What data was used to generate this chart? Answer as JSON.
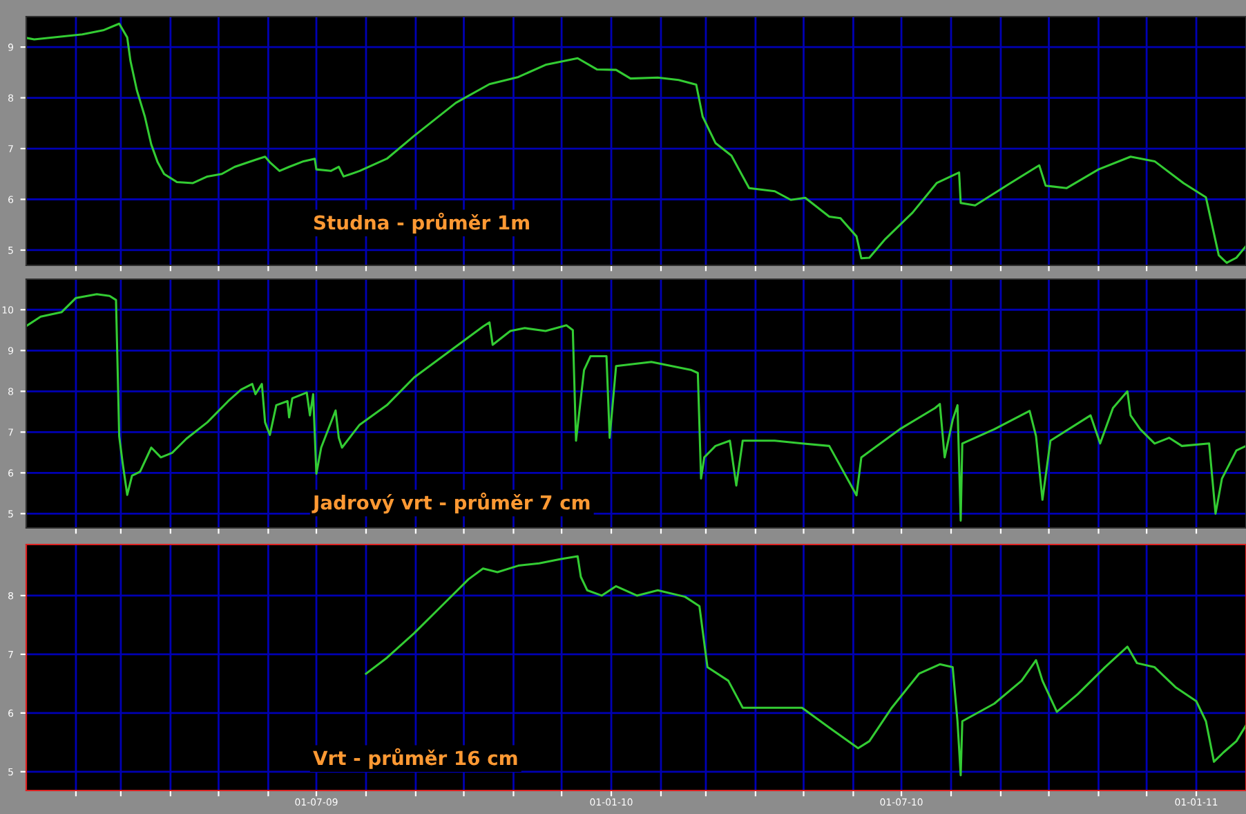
{
  "chart_data": [
    {
      "type": "line",
      "annotations": [
        "Studna - průměr 1m"
      ],
      "xlim": [
        "2009-01-01",
        "2011-02-01"
      ],
      "ylim": [
        4.7,
        9.6
      ],
      "yticks": [
        5,
        6,
        7,
        8,
        9
      ],
      "grid": true,
      "tick_labels": "y",
      "xticks": [
        {
          "value": "2009-02-01",
          "label": null
        },
        {
          "value": "2009-03-01",
          "label": null
        },
        {
          "value": "2009-04-01",
          "label": null
        },
        {
          "value": "2009-05-01",
          "label": null
        },
        {
          "value": "2009-06-01",
          "label": null
        },
        {
          "value": "2009-07-01",
          "label": null
        },
        {
          "value": "2009-08-01",
          "label": null
        },
        {
          "value": "2009-09-01",
          "label": null
        },
        {
          "value": "2009-10-01",
          "label": null
        },
        {
          "value": "2009-11-01",
          "label": null
        },
        {
          "value": "2009-12-01",
          "label": null
        },
        {
          "value": "2010-01-01",
          "label": null
        },
        {
          "value": "2010-02-01",
          "label": null
        },
        {
          "value": "2010-03-01",
          "label": null
        },
        {
          "value": "2010-04-01",
          "label": null
        },
        {
          "value": "2010-05-01",
          "label": null
        },
        {
          "value": "2010-06-01",
          "label": null
        },
        {
          "value": "2010-07-01",
          "label": null
        },
        {
          "value": "2010-08-01",
          "label": null
        },
        {
          "value": "2010-09-01",
          "label": null
        },
        {
          "value": "2010-10-01",
          "label": null
        },
        {
          "value": "2010-11-01",
          "label": null
        },
        {
          "value": "2010-12-01",
          "label": null
        },
        {
          "value": "2011-01-01",
          "label": null
        }
      ],
      "series": [
        {
          "color": "#33cc33",
          "x": [
            "2009-01-01",
            "2009-01-06",
            "2009-02-05",
            "2009-02-18",
            "2009-02-28",
            "2009-03-05",
            "2009-03-07",
            "2009-03-11",
            "2009-03-16",
            "2009-03-20",
            "2009-03-24",
            "2009-03-28",
            "2009-04-05",
            "2009-04-15",
            "2009-04-24",
            "2009-05-03",
            "2009-05-11",
            "2009-05-24",
            "2009-05-30",
            "2009-06-02",
            "2009-06-08",
            "2009-06-14",
            "2009-06-23",
            "2009-06-30",
            "2009-07-01",
            "2009-07-10",
            "2009-07-15",
            "2009-07-18",
            "2009-07-28",
            "2009-08-14",
            "2009-08-31",
            "2009-09-26",
            "2009-10-17",
            "2009-11-04",
            "2009-11-21",
            "2009-12-11",
            "2009-12-23",
            "2010-01-04",
            "2010-01-13",
            "2010-01-30",
            "2010-02-12",
            "2010-02-23",
            "2010-02-27",
            "2010-03-07",
            "2010-03-17",
            "2010-03-28",
            "2010-04-13",
            "2010-04-23",
            "2010-05-02",
            "2010-05-17",
            "2010-05-24",
            "2010-06-03",
            "2010-06-06",
            "2010-06-11",
            "2010-06-21",
            "2010-07-08",
            "2010-07-23",
            "2010-08-06",
            "2010-08-07",
            "2010-08-16",
            "2010-09-06",
            "2010-09-25",
            "2010-09-29",
            "2010-10-12",
            "2010-11-01",
            "2010-11-21",
            "2010-12-06",
            "2010-12-24",
            "2011-01-07",
            "2011-01-15",
            "2011-01-20",
            "2011-01-26",
            "2011-02-01"
          ],
          "values": [
            9.18,
            9.15,
            9.25,
            9.33,
            9.46,
            9.19,
            8.73,
            8.15,
            7.63,
            7.08,
            6.73,
            6.5,
            6.34,
            6.32,
            6.45,
            6.5,
            6.64,
            6.78,
            6.84,
            6.73,
            6.56,
            6.64,
            6.75,
            6.8,
            6.59,
            6.56,
            6.64,
            6.45,
            6.56,
            6.8,
            7.25,
            7.9,
            8.27,
            8.41,
            8.65,
            8.78,
            8.56,
            8.55,
            8.38,
            8.4,
            8.35,
            8.26,
            7.63,
            7.11,
            6.86,
            6.22,
            6.16,
            5.99,
            6.03,
            5.66,
            5.63,
            5.27,
            4.84,
            4.85,
            5.22,
            5.74,
            6.32,
            6.53,
            5.93,
            5.88,
            6.3,
            6.67,
            6.27,
            6.22,
            6.59,
            6.84,
            6.75,
            6.32,
            6.04,
            4.9,
            4.75,
            4.85,
            5.08
          ]
        }
      ]
    },
    {
      "type": "line",
      "annotations": [
        "Jadrový vrt - průměr 7 cm"
      ],
      "xlim": [
        "2009-01-01",
        "2011-02-01"
      ],
      "ylim": [
        4.65,
        10.75
      ],
      "yticks": [
        5,
        6,
        7,
        8,
        9,
        10
      ],
      "grid": true,
      "tick_labels": "y",
      "xticks": [
        {
          "value": "2009-02-01",
          "label": null
        },
        {
          "value": "2009-03-01",
          "label": null
        },
        {
          "value": "2009-04-01",
          "label": null
        },
        {
          "value": "2009-05-01",
          "label": null
        },
        {
          "value": "2009-06-01",
          "label": null
        },
        {
          "value": "2009-07-01",
          "label": null
        },
        {
          "value": "2009-08-01",
          "label": null
        },
        {
          "value": "2009-09-01",
          "label": null
        },
        {
          "value": "2009-10-01",
          "label": null
        },
        {
          "value": "2009-11-01",
          "label": null
        },
        {
          "value": "2009-12-01",
          "label": null
        },
        {
          "value": "2010-01-01",
          "label": null
        },
        {
          "value": "2010-02-01",
          "label": null
        },
        {
          "value": "2010-03-01",
          "label": null
        },
        {
          "value": "2010-04-01",
          "label": null
        },
        {
          "value": "2010-05-01",
          "label": null
        },
        {
          "value": "2010-06-01",
          "label": null
        },
        {
          "value": "2010-07-01",
          "label": null
        },
        {
          "value": "2010-08-01",
          "label": null
        },
        {
          "value": "2010-09-01",
          "label": null
        },
        {
          "value": "2010-10-01",
          "label": null
        },
        {
          "value": "2010-11-01",
          "label": null
        },
        {
          "value": "2010-12-01",
          "label": null
        },
        {
          "value": "2011-01-01",
          "label": null
        }
      ],
      "series": [
        {
          "color": "#33cc33",
          "x": [
            "2009-01-01",
            "2009-01-10",
            "2009-01-23",
            "2009-02-01",
            "2009-02-14",
            "2009-02-22",
            "2009-02-26",
            "2009-02-28",
            "2009-03-02",
            "2009-03-05",
            "2009-03-08",
            "2009-03-13",
            "2009-03-20",
            "2009-03-26",
            "2009-04-02",
            "2009-04-11",
            "2009-04-24",
            "2009-05-07",
            "2009-05-15",
            "2009-05-22",
            "2009-05-24",
            "2009-05-28",
            "2009-05-30",
            "2009-06-02",
            "2009-06-06",
            "2009-06-13",
            "2009-06-14",
            "2009-06-16",
            "2009-06-25",
            "2009-06-27",
            "2009-06-29",
            "2009-07-01",
            "2009-07-04",
            "2009-07-13",
            "2009-07-15",
            "2009-07-17",
            "2009-07-28",
            "2009-08-14",
            "2009-08-31",
            "2009-10-13",
            "2009-10-17",
            "2009-10-19",
            "2009-10-30",
            "2009-11-08",
            "2009-11-21",
            "2009-12-04",
            "2009-12-08",
            "2009-12-10",
            "2009-12-15",
            "2009-12-19",
            "2009-12-29",
            "2009-12-31",
            "2010-01-04",
            "2010-01-26",
            "2010-02-20",
            "2010-02-24",
            "2010-02-26",
            "2010-02-28",
            "2010-03-07",
            "2010-03-16",
            "2010-03-20",
            "2010-03-24",
            "2010-04-13",
            "2010-04-30",
            "2010-05-17",
            "2010-06-03",
            "2010-06-06",
            "2010-06-30",
            "2010-07-22",
            "2010-07-25",
            "2010-07-28",
            "2010-08-02",
            "2010-08-05",
            "2010-08-07",
            "2010-08-08",
            "2010-08-28",
            "2010-09-19",
            "2010-09-23",
            "2010-09-27",
            "2010-10-02",
            "2010-10-27",
            "2010-11-02",
            "2010-11-10",
            "2010-11-19",
            "2010-11-21",
            "2010-11-27",
            "2010-12-06",
            "2010-12-15",
            "2010-12-23",
            "2011-01-09",
            "2011-01-13",
            "2011-01-17",
            "2011-01-26",
            "2011-02-01"
          ],
          "values": [
            9.6,
            9.83,
            9.94,
            10.29,
            10.38,
            10.34,
            10.24,
            6.9,
            6.28,
            5.46,
            5.93,
            6.03,
            6.62,
            6.38,
            6.49,
            6.84,
            7.24,
            7.76,
            8.04,
            8.18,
            7.93,
            8.18,
            7.24,
            6.93,
            7.66,
            7.76,
            7.36,
            7.83,
            7.97,
            7.41,
            7.93,
            5.98,
            6.62,
            7.53,
            6.86,
            6.62,
            7.18,
            7.66,
            8.34,
            9.59,
            9.69,
            9.14,
            9.48,
            9.55,
            9.48,
            9.62,
            9.5,
            6.79,
            8.52,
            8.86,
            8.86,
            6.86,
            8.62,
            8.72,
            8.52,
            8.45,
            5.86,
            6.38,
            6.66,
            6.79,
            5.69,
            6.79,
            6.79,
            6.72,
            6.66,
            5.45,
            6.38,
            7.07,
            7.59,
            7.69,
            6.38,
            7.3,
            7.66,
            4.83,
            6.72,
            7.07,
            7.52,
            6.9,
            5.34,
            6.79,
            7.41,
            6.72,
            7.59,
            8.0,
            7.41,
            7.07,
            6.72,
            6.86,
            6.66,
            6.72,
            5.0,
            5.86,
            6.55,
            6.66
          ]
        }
      ]
    },
    {
      "type": "line",
      "annotations": [
        "Vrt - průměr 16 cm"
      ],
      "xlim": [
        "2009-01-01",
        "2011-02-01"
      ],
      "ylim": [
        4.68,
        8.87
      ],
      "yticks": [
        5,
        6,
        7,
        8
      ],
      "grid": true,
      "xticks": [
        {
          "value": "2009-02-01",
          "label": null
        },
        {
          "value": "2009-03-01",
          "label": null
        },
        {
          "value": "2009-04-01",
          "label": null
        },
        {
          "value": "2009-05-01",
          "label": null
        },
        {
          "value": "2009-06-01",
          "label": null
        },
        {
          "value": "2009-07-01",
          "label": "01-07-09"
        },
        {
          "value": "2009-08-01",
          "label": null
        },
        {
          "value": "2009-09-01",
          "label": null
        },
        {
          "value": "2009-10-01",
          "label": null
        },
        {
          "value": "2009-11-01",
          "label": null
        },
        {
          "value": "2009-12-01",
          "label": null
        },
        {
          "value": "2010-01-01",
          "label": "01-01-10"
        },
        {
          "value": "2010-02-01",
          "label": null
        },
        {
          "value": "2010-03-01",
          "label": null
        },
        {
          "value": "2010-04-01",
          "label": null
        },
        {
          "value": "2010-05-01",
          "label": null
        },
        {
          "value": "2010-06-01",
          "label": null
        },
        {
          "value": "2010-07-01",
          "label": "01-07-10"
        },
        {
          "value": "2010-08-01",
          "label": null
        },
        {
          "value": "2010-09-01",
          "label": null
        },
        {
          "value": "2010-10-01",
          "label": null
        },
        {
          "value": "2010-11-01",
          "label": null
        },
        {
          "value": "2010-12-01",
          "label": null
        },
        {
          "value": "2011-01-01",
          "label": "01-01-11"
        }
      ],
      "series": [
        {
          "color": "#33cc33",
          "x": [
            "2009-08-01",
            "2009-08-14",
            "2009-08-31",
            "2009-09-17",
            "2009-10-04",
            "2009-10-13",
            "2009-10-22",
            "2009-11-04",
            "2009-11-17",
            "2009-11-30",
            "2009-12-11",
            "2009-12-13",
            "2009-12-17",
            "2009-12-26",
            "2010-01-04",
            "2010-01-17",
            "2010-01-30",
            "2010-02-16",
            "2010-02-25",
            "2010-03-02",
            "2010-03-15",
            "2010-03-24",
            "2010-04-13",
            "2010-04-30",
            "2010-05-17",
            "2010-06-04",
            "2010-06-11",
            "2010-06-25",
            "2010-07-12",
            "2010-07-25",
            "2010-08-02",
            "2010-08-05",
            "2010-08-07",
            "2010-08-08",
            "2010-08-28",
            "2010-09-14",
            "2010-09-23",
            "2010-09-27",
            "2010-10-06",
            "2010-10-19",
            "2010-11-05",
            "2010-11-19",
            "2010-11-25",
            "2010-12-06",
            "2010-12-19",
            "2011-01-01",
            "2011-01-07",
            "2011-01-12",
            "2011-01-18",
            "2011-01-26",
            "2011-02-01"
          ],
          "values": [
            6.67,
            6.94,
            7.36,
            7.82,
            8.28,
            8.46,
            8.4,
            8.51,
            8.55,
            8.62,
            8.67,
            8.32,
            8.09,
            8.0,
            8.16,
            8.0,
            8.09,
            7.98,
            7.82,
            6.78,
            6.55,
            6.09,
            6.09,
            6.09,
            5.75,
            5.4,
            5.52,
            6.09,
            6.67,
            6.83,
            6.78,
            5.86,
            4.94,
            5.86,
            6.16,
            6.55,
            6.9,
            6.55,
            6.02,
            6.32,
            6.78,
            7.13,
            6.85,
            6.78,
            6.44,
            6.2,
            5.86,
            5.17,
            5.33,
            5.52,
            5.79
          ]
        }
      ]
    }
  ]
}
